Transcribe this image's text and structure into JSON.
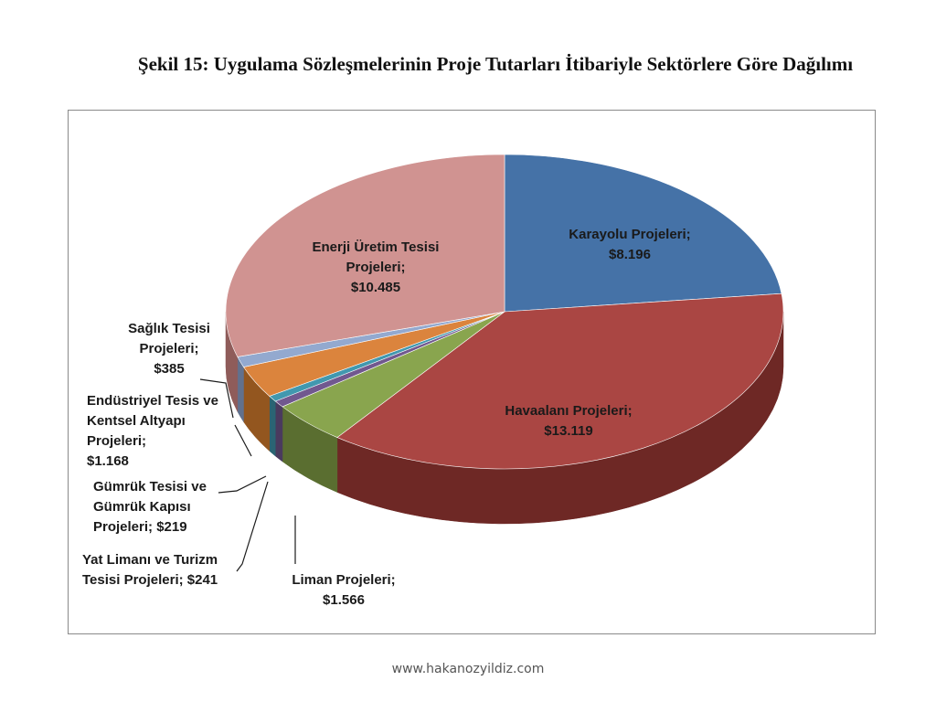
{
  "page": {
    "title": "Şekil 15: Uygulama Sözleşmelerinin Proje Tutarları İtibariyle Sektörlere Göre Dağılımı",
    "footer": "www.hakanozyildiz.com"
  },
  "chart_data": {
    "type": "pie",
    "style": "3d",
    "legend": "none",
    "slices": [
      {
        "label_lines": [
          "Karayolu Projeleri;",
          "$8.196"
        ],
        "value": 8196,
        "color": "#4572a7",
        "dark": "#2e4d72"
      },
      {
        "label_lines": [
          "Havaalanı Projeleri;",
          "$13.119"
        ],
        "value": 13119,
        "color": "#aa4643",
        "dark": "#6e2825"
      },
      {
        "label_lines": [
          "Liman Projeleri;",
          "$1.566"
        ],
        "value": 1566,
        "color": "#89a54e",
        "dark": "#5a6e30"
      },
      {
        "label_lines": [
          "Yat Limanı ve Turizm",
          "Tesisi Projeleri; $241"
        ],
        "value": 241,
        "color": "#71588f",
        "dark": "#4a3a5e"
      },
      {
        "label_lines": [
          "Gümrük Tesisi ve",
          "Gümrük Kapısı",
          "Projeleri; $219"
        ],
        "value": 219,
        "color": "#4198af",
        "dark": "#2a6473"
      },
      {
        "label_lines": [
          "Endüstriyel Tesis ve",
          "Kentsel Altyapı",
          "Projeleri;",
          "$1.168"
        ],
        "value": 1168,
        "color": "#db843d",
        "dark": "#93561f"
      },
      {
        "label_lines": [
          "Sağlık Tesisi",
          "Projeleri;",
          "$385"
        ],
        "value": 385,
        "color": "#93a9cf",
        "dark": "#61718e"
      },
      {
        "label_lines": [
          "Enerji Üretim Tesisi",
          "Projeleri;",
          "$10.485"
        ],
        "value": 10485,
        "color": "#d09391",
        "dark": "#8f5c5a"
      }
    ]
  }
}
